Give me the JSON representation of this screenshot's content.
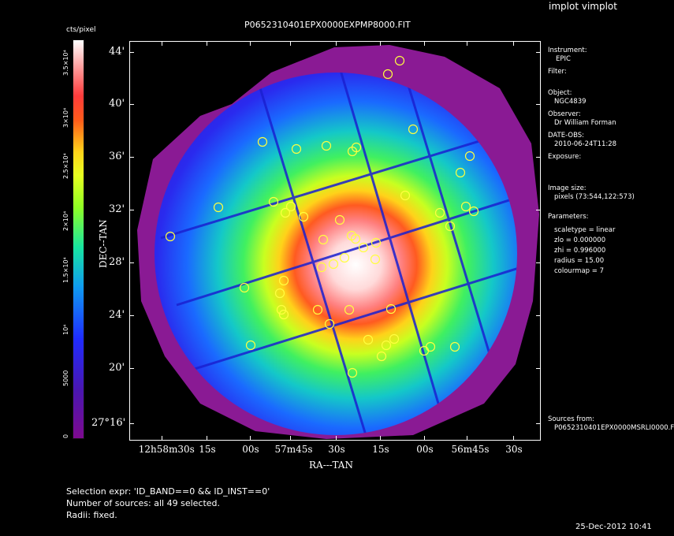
{
  "app_title": "implot vimplot",
  "image_title": "P0652310401EPX0000EXPMP8000.FIT",
  "colorbar": {
    "unit": "cts/pixel",
    "labels": [
      "0",
      "5000",
      "10⁴",
      "1.5×10⁴",
      "2×10⁴",
      "2.5×10⁴",
      "3×10⁴",
      "3.5×10⁴"
    ]
  },
  "axes": {
    "ylabel": "DEC--TAN",
    "xlabel": "RA---TAN",
    "yticks": [
      "44'",
      "40'",
      "36'",
      "32'",
      "28'",
      "24'",
      "20'",
      "27°16'"
    ],
    "xticks": [
      "12h58m30s",
      "15s",
      "00s",
      "57m45s",
      "30s",
      "15s",
      "00s",
      "56m45s",
      "30s"
    ]
  },
  "info_panel": {
    "instrument_label": "Instrument:",
    "instrument": "EPIC",
    "filter_label": "Filter:",
    "object_label": "Object:",
    "object": "NGC4839",
    "observer_label": "Observer:",
    "observer": "Dr William Forman",
    "date_label": "DATE-OBS:",
    "date": "2010-06-24T11:28",
    "exposure_label": "Exposure:",
    "image_size_label": "Image size:",
    "image_size": "pixels (73:544,122:573)",
    "parameters_label": "Parameters:",
    "scaletype": "scaletype = linear",
    "zlo": "zlo = 0.000000",
    "zhi": "zhi = 0.996000",
    "radius": "radius = 15.00",
    "colourmap": "colourmap = 7",
    "sources_from_label": "Sources from:",
    "sources_from": "P0652310401EPX0000MSRLI0000.F"
  },
  "selection": {
    "expr": "Selection expr: 'ID_BAND==0 && ID_INST==0'",
    "count": "Number of sources: all 49 selected.",
    "radii": "Radii: fixed."
  },
  "datestamp": "25-Dec-2012 10:41",
  "colors": {
    "background": "#000000",
    "outer_purple": "#8a1a94",
    "core_white": "#ffffff",
    "source_circle": "#ffff40"
  }
}
